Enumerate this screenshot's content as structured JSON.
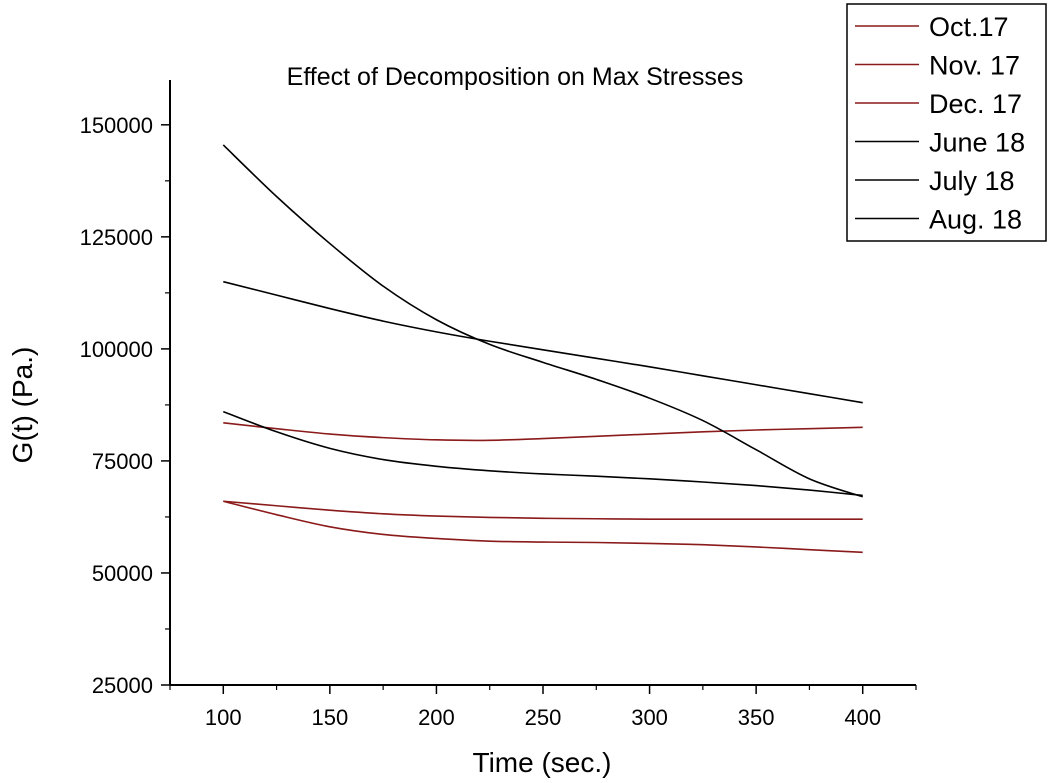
{
  "chart_data": {
    "type": "line",
    "title": "Effect of Decomposition on Max Stresses",
    "xlabel": "Time (sec.)",
    "ylabel": "G(t) (Pa.)",
    "xlim": [
      75,
      425
    ],
    "ylim": [
      25000,
      160000
    ],
    "x_ticks": [
      100,
      150,
      200,
      250,
      300,
      350,
      400
    ],
    "y_ticks": [
      25000,
      50000,
      75000,
      100000,
      125000,
      150000
    ],
    "x_tick_labels": [
      "100",
      "150",
      "200",
      "250",
      "300",
      "350",
      "400"
    ],
    "y_tick_labels": [
      "25000",
      "50000",
      "75000",
      "100000",
      "125000",
      "150000"
    ],
    "legend_position": "top-right",
    "x": [
      100,
      125,
      150,
      175,
      200,
      225,
      250,
      275,
      300,
      325,
      350,
      375,
      400
    ],
    "series": [
      {
        "name": "Oct.17",
        "color": "#8b1a1a",
        "values": [
          83500,
          82200,
          81000,
          80200,
          79700,
          79600,
          80000,
          80500,
          81000,
          81500,
          81900,
          82200,
          82500
        ]
      },
      {
        "name": "Nov. 17",
        "color": "#8b1a1a",
        "values": [
          66000,
          65000,
          64000,
          63200,
          62700,
          62400,
          62200,
          62100,
          62000,
          62000,
          62000,
          62000,
          62000
        ]
      },
      {
        "name": "Dec. 17",
        "color": "#8b1a1a",
        "values": [
          66000,
          63000,
          60300,
          58600,
          57700,
          57100,
          56900,
          56800,
          56600,
          56300,
          55800,
          55200,
          54600
        ]
      },
      {
        "name": "June 18",
        "color": "#000000",
        "values": [
          145500,
          134000,
          123500,
          114000,
          106500,
          101000,
          97000,
          93200,
          89000,
          84000,
          77500,
          71000,
          67000
        ]
      },
      {
        "name": "July 18",
        "color": "#000000",
        "values": [
          115000,
          112000,
          109000,
          106200,
          103800,
          101700,
          99800,
          97900,
          96000,
          94000,
          92000,
          90000,
          88000
        ]
      },
      {
        "name": "Aug. 18",
        "color": "#000000",
        "values": [
          86000,
          81500,
          77800,
          75300,
          73800,
          72800,
          72100,
          71600,
          71000,
          70300,
          69500,
          68500,
          67300
        ]
      }
    ]
  }
}
